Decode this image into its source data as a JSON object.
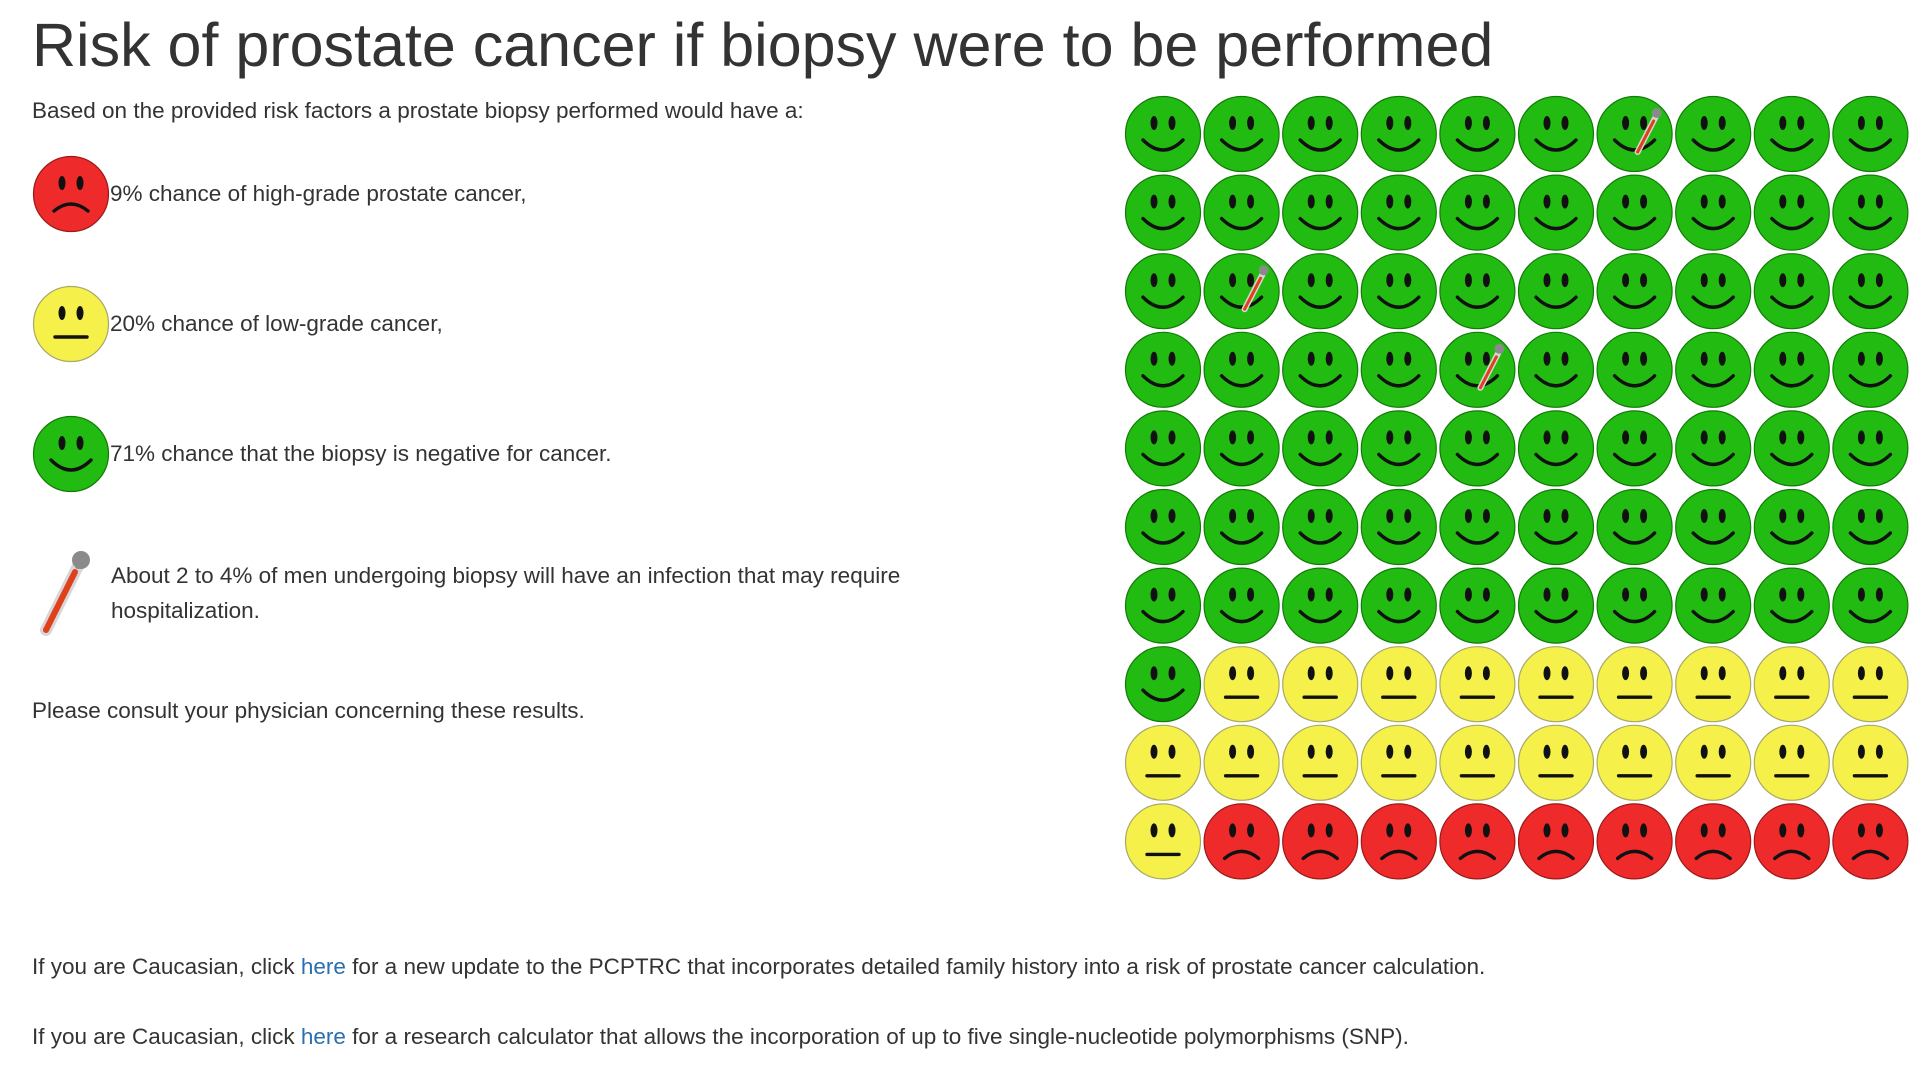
{
  "page": {
    "title": "Risk of prostate cancer if biopsy were to be performed",
    "intro": "Based on the provided risk factors a prostate biopsy performed would have a:",
    "consult": "Please consult your physician concerning these results."
  },
  "legend": [
    {
      "kind": "red",
      "label": "9% chance of high-grade prostate cancer,"
    },
    {
      "kind": "yellow",
      "label": "20% chance of low-grade cancer,"
    },
    {
      "kind": "green",
      "label": "71% chance that the biopsy is negative for cancer."
    },
    {
      "kind": "thermometer",
      "label": "About 2 to 4% of men undergoing biopsy will have an infection that may require hospitalization."
    }
  ],
  "icon_grid": {
    "rows": 10,
    "cols": 10,
    "counts": {
      "green": 71,
      "yellow": 20,
      "red": 9
    },
    "infection_markers": [
      6,
      21,
      34
    ]
  },
  "footer": [
    {
      "before": "If you are Caucasian, click ",
      "link": "here",
      "after": " for a new update to the PCPTRC that incorporates detailed family history into a risk of prostate cancer calculation."
    },
    {
      "before": "If you are Caucasian, click ",
      "link": "here",
      "after": " for a research calculator that allows the incorporation of up to five single-nucleotide polymorphisms (SNP)."
    }
  ],
  "colors": {
    "green_face": "#22bb11",
    "yellow_face": "#f5f04a",
    "red_face": "#ee2a2a",
    "link": "#2a6fb0",
    "text": "#333333"
  }
}
